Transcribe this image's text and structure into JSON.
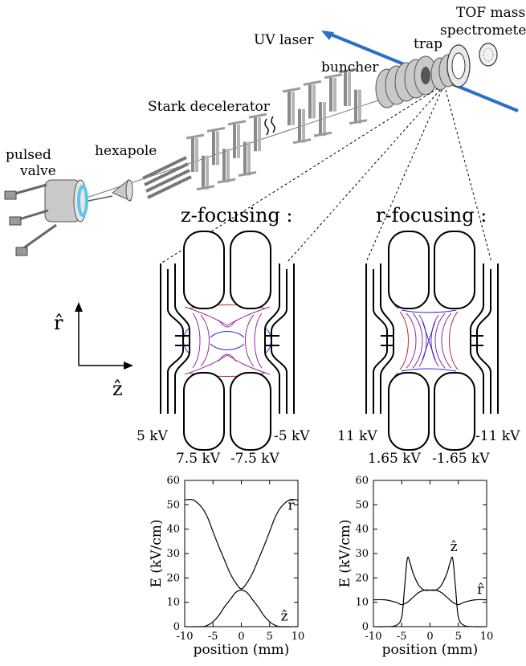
{
  "apparatus": {
    "labels": {
      "pulsed_valve_1": "pulsed",
      "pulsed_valve_2": "valve",
      "hexapole": "hexapole",
      "stark_decelerator": "Stark decelerator",
      "buncher": "buncher",
      "trap": "trap",
      "uv_laser": "UV laser",
      "tof_1": "TOF mass",
      "tof_2": "spectrometer"
    },
    "colors": {
      "laser": "#2a6fc9",
      "valve_ring": "#5fc6e8"
    }
  },
  "z_focusing": {
    "title": "z-focusing :",
    "voltages": {
      "outer_left": "5 kV",
      "outer_right": "-5 kV",
      "inner_left": "7.5 kV",
      "inner_right": "-7.5 kV"
    }
  },
  "r_focusing": {
    "title": "r-focusing :",
    "voltages": {
      "outer_left": "11 kV",
      "outer_right": "-11 kV",
      "inner_left": "1.65 kV",
      "inner_right": "-1.65 kV"
    }
  },
  "axes_glyph": {
    "r": "r̂",
    "z": "ẑ"
  },
  "chart_data": [
    {
      "type": "line",
      "xlabel": "position (mm)",
      "ylabel": "E (kV/cm)",
      "xlim": [
        -10,
        10
      ],
      "ylim": [
        0,
        60
      ],
      "xticks": [
        -10,
        -5,
        0,
        5,
        10
      ],
      "yticks": [
        0,
        10,
        20,
        30,
        40,
        50,
        60
      ],
      "series": [
        {
          "name": "r̂",
          "x": [
            -10,
            -8.5,
            -7,
            -6,
            -5,
            -4,
            -3,
            -2,
            -1,
            0,
            1,
            2,
            3,
            4,
            5,
            6,
            7,
            8.5,
            10
          ],
          "y": [
            52,
            52,
            49,
            45,
            39,
            33,
            27.5,
            22,
            18,
            15.5,
            18,
            22,
            27.5,
            33,
            39,
            45,
            49,
            52,
            52
          ]
        },
        {
          "name": "ẑ",
          "x": [
            -10,
            -7,
            -6,
            -5,
            -4,
            -3,
            -2,
            -1,
            0,
            1,
            2,
            3,
            4,
            5,
            6,
            7,
            10
          ],
          "y": [
            0,
            0,
            0.5,
            2,
            4.5,
            8,
            11,
            14,
            15,
            14,
            11,
            8,
            4.5,
            2,
            0.5,
            0,
            0
          ]
        }
      ]
    },
    {
      "type": "line",
      "xlabel": "position (mm)",
      "ylabel": "E (kV/cm)",
      "xlim": [
        -10,
        10
      ],
      "ylim": [
        0,
        60
      ],
      "xticks": [
        -10,
        -5,
        0,
        5,
        10
      ],
      "yticks": [
        0,
        10,
        20,
        30,
        40,
        50,
        60
      ],
      "series": [
        {
          "name": "ẑ",
          "x": [
            -10,
            -8,
            -6,
            -5,
            -4.5,
            -4,
            -3.5,
            -3,
            -2,
            -1,
            0,
            1,
            2,
            3,
            3.5,
            4,
            4.5,
            5,
            6,
            8,
            10
          ],
          "y": [
            0,
            0,
            0.5,
            4,
            16,
            28,
            26,
            22,
            17,
            15,
            15,
            15,
            17,
            22,
            26,
            28,
            16,
            4,
            0.5,
            0,
            0
          ]
        },
        {
          "name": "r̂",
          "x": [
            -10,
            -8,
            -6,
            -5,
            -4,
            -3,
            -2,
            -1,
            0,
            1,
            2,
            3,
            4,
            5,
            6,
            8,
            10
          ],
          "y": [
            11,
            11,
            10,
            9,
            10,
            12,
            14,
            15,
            15,
            15,
            14,
            12,
            10,
            9,
            10,
            11,
            11
          ]
        }
      ]
    }
  ]
}
